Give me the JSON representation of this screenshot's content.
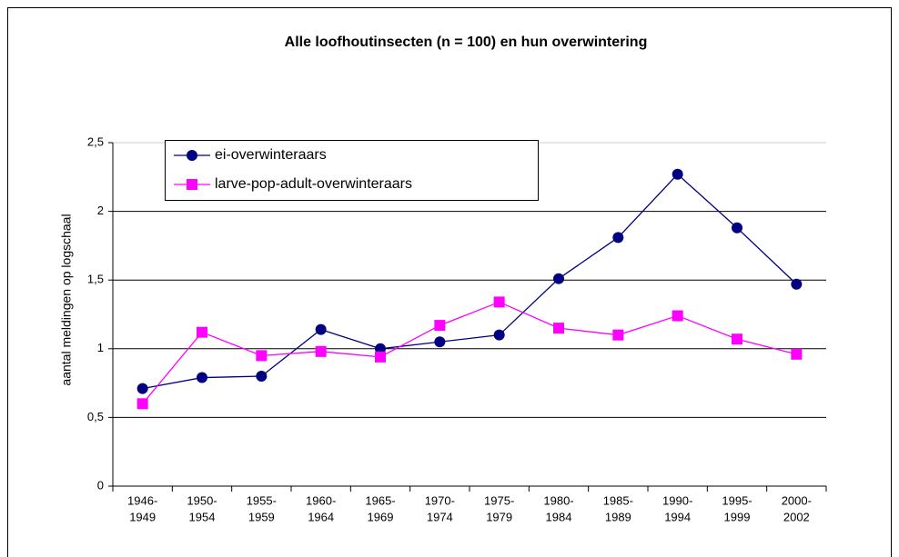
{
  "chart_data": {
    "type": "line",
    "title": "Alle loofhoutinsecten (n = 100) en hun overwintering",
    "y_label": "aantal meldingen op logschaal",
    "categories": [
      [
        "1946-",
        "1949"
      ],
      [
        "1950-",
        "1954"
      ],
      [
        "1955-",
        "1959"
      ],
      [
        "1960-",
        "1964"
      ],
      [
        "1965-",
        "1969"
      ],
      [
        "1970-",
        "1974"
      ],
      [
        "1975-",
        "1979"
      ],
      [
        "1980-",
        "1984"
      ],
      [
        "1985-",
        "1989"
      ],
      [
        "1990-",
        "1994"
      ],
      [
        "1995-",
        "1999"
      ],
      [
        "2000-",
        "2002"
      ]
    ],
    "series": [
      {
        "name": "ei-overwinteraars",
        "color": "#000080",
        "marker": "circle",
        "values": [
          0.71,
          0.79,
          0.8,
          1.14,
          1.0,
          1.05,
          1.1,
          1.51,
          1.81,
          2.27,
          1.88,
          1.47
        ]
      },
      {
        "name": "larve-pop-adult-overwinteraars",
        "color": "#ff00ff",
        "marker": "square",
        "values": [
          0.6,
          1.12,
          0.95,
          0.98,
          0.94,
          1.17,
          1.34,
          1.15,
          1.1,
          1.24,
          1.07,
          0.96
        ]
      }
    ],
    "ylim": [
      0,
      2.5
    ],
    "yticks": [
      0,
      {
        "value": 0.5,
        "label": "0,5"
      },
      1,
      {
        "value": 1.5,
        "label": "1,5"
      },
      2,
      {
        "value": 2.5,
        "label": "2,5"
      }
    ],
    "grid": true,
    "legend": "top-left"
  }
}
